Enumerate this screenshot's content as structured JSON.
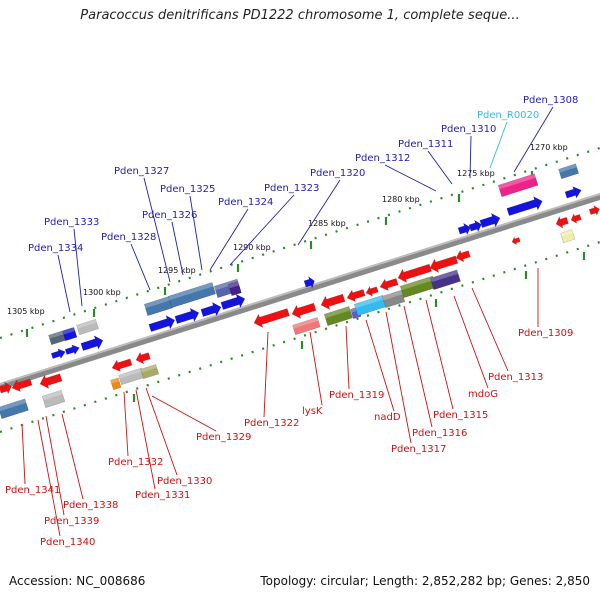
{
  "title": "Paracoccus denitrificans PD1222 chromosome 1, complete seque...",
  "footer": {
    "accession": "Accession: NC_008686",
    "summary": "Topology: circular; Length: 2,852,282 bp; Genes: 2,850"
  },
  "colors": {
    "upper_label": "#1f1fa8",
    "lower_label": "#cc1111",
    "rna_label": "#33bbee",
    "backbone": "#8a8a8a",
    "tick": "#2a8a2a"
  },
  "scale": [
    {
      "label": "1305 kbp"
    },
    {
      "label": "1300 kbp"
    },
    {
      "label": "1295 kbp"
    },
    {
      "label": "1290 kbp"
    },
    {
      "label": "1285 kbp"
    },
    {
      "label": "1280 kbp"
    },
    {
      "label": "1275 kbp"
    },
    {
      "label": "1270 kbp"
    }
  ],
  "upper_labels": [
    {
      "text": "Pden_1308"
    },
    {
      "text": "Pden_R0020"
    },
    {
      "text": "Pden_1310"
    },
    {
      "text": "Pden_1311"
    },
    {
      "text": "Pden_1312"
    },
    {
      "text": "Pden_1320"
    },
    {
      "text": "Pden_1323"
    },
    {
      "text": "Pden_1324"
    },
    {
      "text": "Pden_1325"
    },
    {
      "text": "Pden_1326"
    },
    {
      "text": "Pden_1327"
    },
    {
      "text": "Pden_1328"
    },
    {
      "text": "Pden_1333"
    },
    {
      "text": "Pden_1334"
    }
  ],
  "lower_labels": [
    {
      "text": "Pden_1309"
    },
    {
      "text": "Pden_1313"
    },
    {
      "text": "mdoG"
    },
    {
      "text": "Pden_1315"
    },
    {
      "text": "Pden_1316"
    },
    {
      "text": "Pden_1317"
    },
    {
      "text": "nadD"
    },
    {
      "text": "Pden_1319"
    },
    {
      "text": "lysK"
    },
    {
      "text": "Pden_1322"
    },
    {
      "text": "Pden_1329"
    },
    {
      "text": "Pden_1330"
    },
    {
      "text": "Pden_1331"
    },
    {
      "text": "Pden_1332"
    },
    {
      "text": "Pden_1338"
    },
    {
      "text": "Pden_1339"
    },
    {
      "text": "Pden_1340"
    },
    {
      "text": "Pden_1341"
    }
  ]
}
